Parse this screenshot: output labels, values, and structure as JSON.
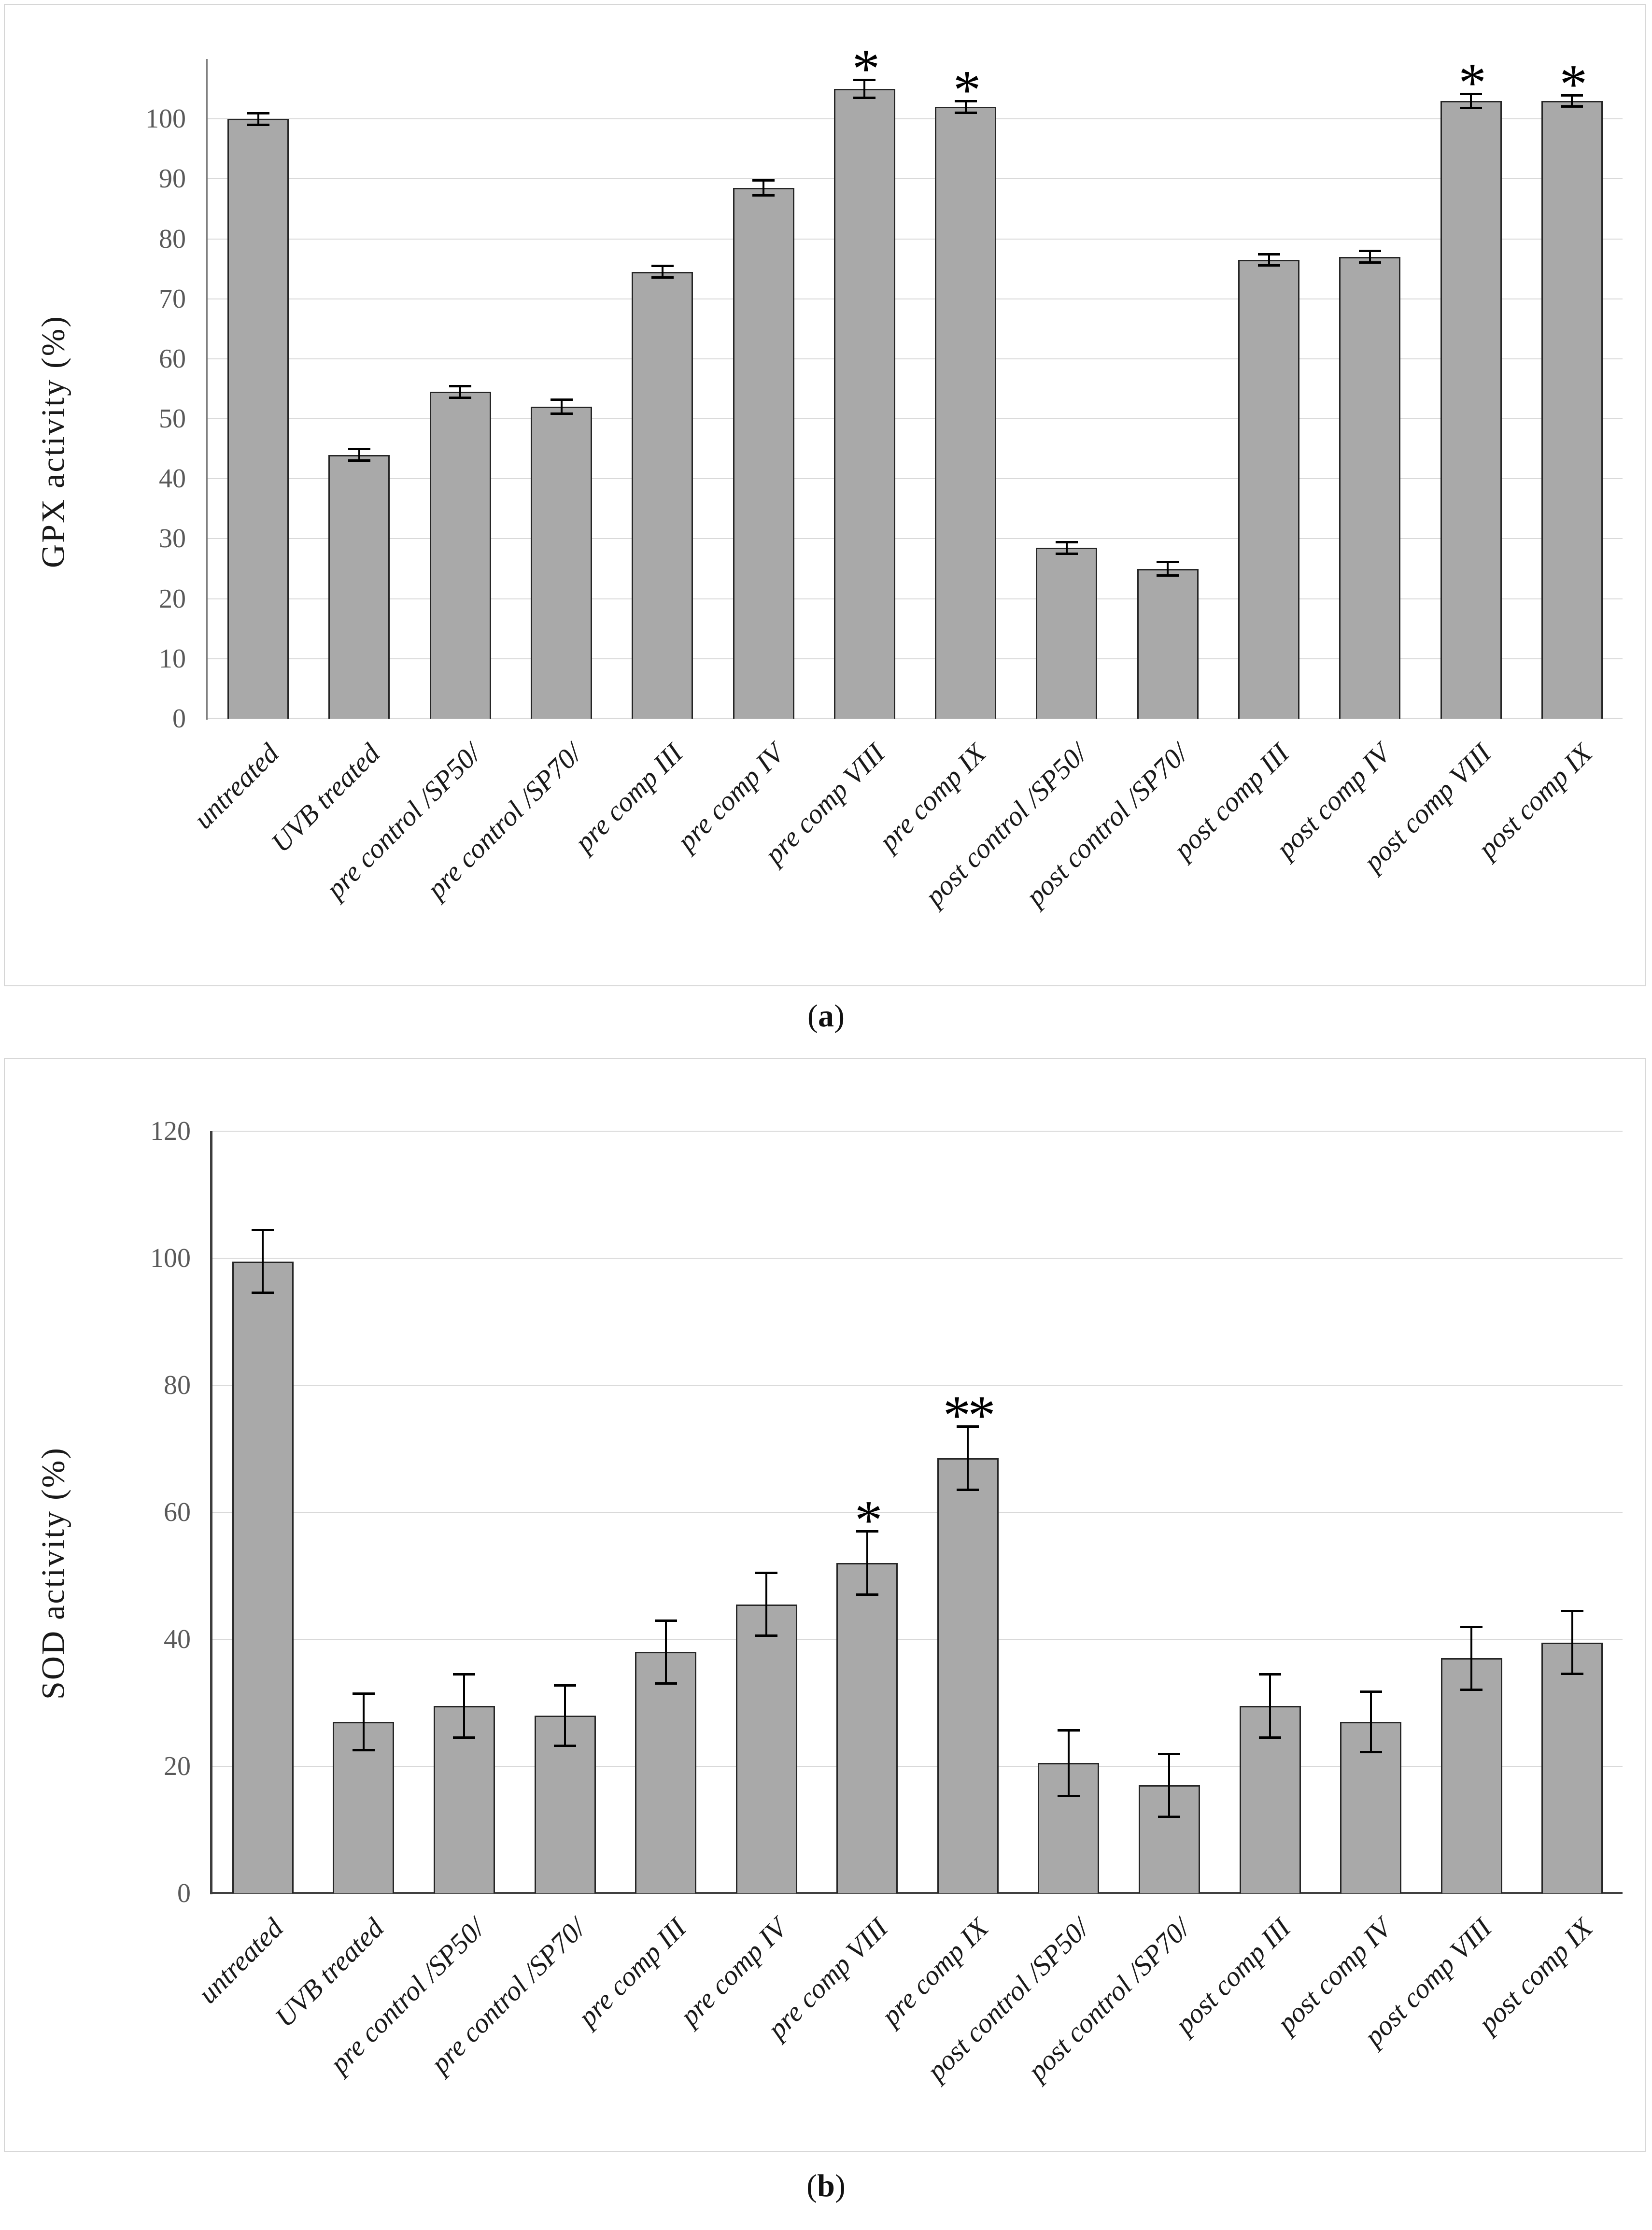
{
  "figure": {
    "captions": {
      "a": {
        "open": "(",
        "letter": "a",
        "close": ")"
      },
      "b": {
        "open": "(",
        "letter": "b",
        "close": ")"
      }
    }
  },
  "colors": {
    "bar_fill": "#a9a9a9",
    "bar_border": "#262626",
    "gridline": "#d9d9d9",
    "axis_a": "#808080",
    "axis_b": "#3d3d3d",
    "baseline_a": "#d9d9d9",
    "baseline_b": "#404040",
    "error_bar": "#000000",
    "tick_text": "#595959",
    "label_text": "#1a1a1a",
    "panel_border": "#d6d6d6"
  },
  "chart_data": [
    {
      "type": "bar",
      "panel": "a",
      "title": "",
      "xlabel": "",
      "ylabel": "GPX activity (%)",
      "ylim": [
        0,
        110
      ],
      "yticks": [
        0,
        10,
        20,
        30,
        40,
        50,
        60,
        70,
        80,
        90,
        100
      ],
      "grid": true,
      "legend_position": "none",
      "categories": [
        "untreated",
        "UVB treated",
        "pre control /SP50/",
        "pre control /SP70/",
        "pre comp III",
        "pre comp IV",
        "pre comp VIII",
        "pre comp IX",
        "post control /SP50/",
        "post control /SP70/",
        "post comp III",
        "post comp IV",
        "post comp VIII",
        "post comp IX"
      ],
      "values": [
        100,
        44,
        54.5,
        52,
        74.5,
        88.5,
        105,
        102,
        28.5,
        25,
        76.5,
        77,
        103,
        103
      ],
      "errors": [
        1,
        1,
        1,
        1.2,
        1,
        1.3,
        1.5,
        1,
        1,
        1.2,
        1,
        1,
        1.2,
        1
      ],
      "annotations": [
        "",
        "",
        "",
        "",
        "",
        "",
        "*",
        "*",
        "",
        "",
        "",
        "",
        "*",
        "*"
      ]
    },
    {
      "type": "bar",
      "panel": "b",
      "title": "",
      "xlabel": "",
      "ylabel": "SOD activity (%)",
      "ylim": [
        0,
        120
      ],
      "yticks": [
        0,
        20,
        40,
        60,
        80,
        100,
        120
      ],
      "grid": true,
      "legend_position": "none",
      "categories": [
        "untreated",
        "UVB treated",
        "pre control /SP50/",
        "pre control /SP70/",
        "pre comp III",
        "pre comp IV",
        "pre comp VIII",
        "pre comp IX",
        "post control /SP50/",
        "post control /SP70/",
        "post comp III",
        "post comp IV",
        "post comp VIII",
        "post comp IX"
      ],
      "values": [
        99.5,
        27,
        29.5,
        28,
        38,
        45.5,
        52,
        68.5,
        20.5,
        17,
        29.5,
        27,
        37,
        39.5
      ],
      "errors": [
        5,
        4.5,
        5,
        4.8,
        5,
        5,
        5,
        5,
        5.2,
        5,
        5,
        4.8,
        5,
        5
      ],
      "annotations": [
        "",
        "",
        "",
        "",
        "",
        "",
        "*",
        "**",
        "",
        "",
        "",
        "",
        "",
        ""
      ]
    }
  ]
}
